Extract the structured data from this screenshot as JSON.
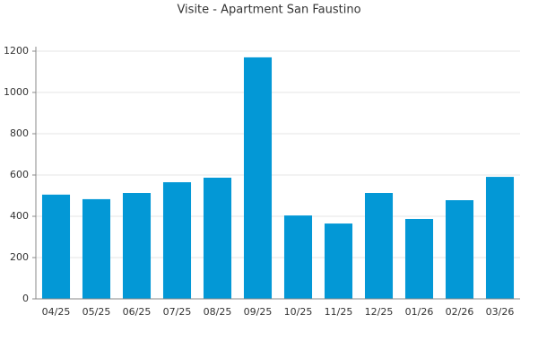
{
  "chart_data": {
    "type": "bar",
    "title": "Visite - Apartment San Faustino",
    "categories": [
      "04/25",
      "05/25",
      "06/25",
      "07/25",
      "08/25",
      "09/25",
      "10/25",
      "11/25",
      "12/25",
      "01/26",
      "02/26",
      "03/26"
    ],
    "values": [
      505,
      483,
      513,
      565,
      587,
      1170,
      404,
      365,
      513,
      387,
      478,
      591
    ],
    "color": "#0398d6",
    "ylim": [
      0,
      1200
    ],
    "yticks": [
      0,
      200,
      400,
      600,
      800,
      1000,
      1200
    ],
    "grid": true
  }
}
